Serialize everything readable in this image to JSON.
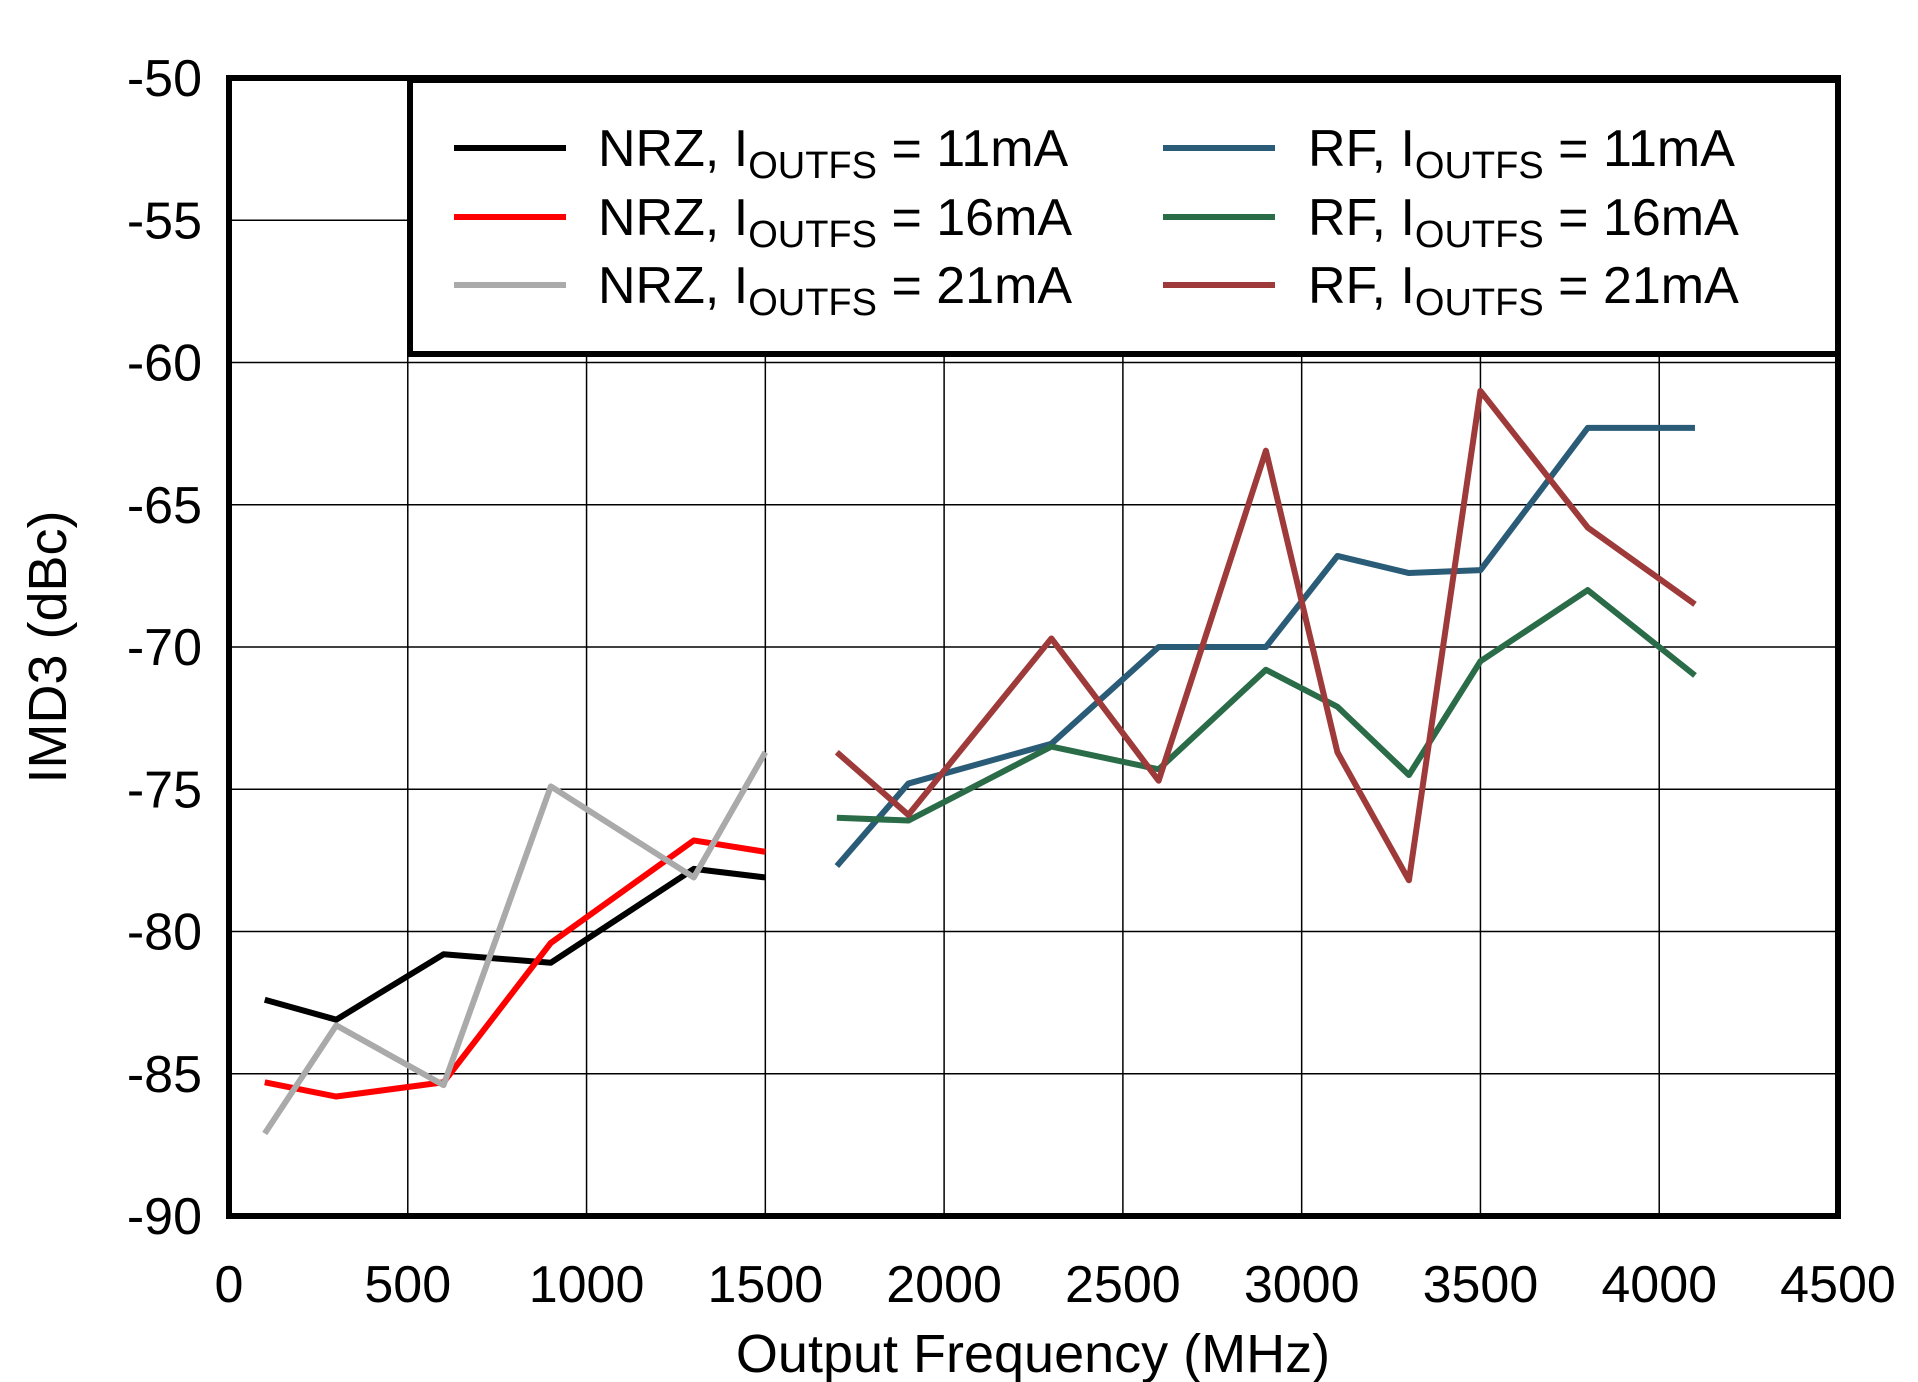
{
  "chart_data": {
    "type": "line",
    "title": "",
    "xlabel": "Output Frequency (MHz)",
    "ylabel": "IMD3 (dBc)",
    "xlim": [
      0,
      4500
    ],
    "ylim": [
      -90,
      -50
    ],
    "xticks": [
      0,
      500,
      1000,
      1500,
      2000,
      2500,
      3000,
      3500,
      4000,
      4500
    ],
    "yticks": [
      -50,
      -55,
      -60,
      -65,
      -70,
      -75,
      -80,
      -85,
      -90
    ],
    "grid": true,
    "legend_position": "top-right",
    "series": [
      {
        "name_parts": [
          "NRZ, I",
          "OUTFS",
          " = 11mA"
        ],
        "color": "#000000",
        "x": [
          100,
          300,
          600,
          900,
          1300,
          1500
        ],
        "y": [
          -82.4,
          -83.1,
          -80.8,
          -81.1,
          -77.8,
          -78.1
        ]
      },
      {
        "name_parts": [
          "NRZ, I",
          "OUTFS",
          " = 16mA"
        ],
        "color": "#FF0000",
        "x": [
          100,
          300,
          600,
          900,
          1300,
          1500
        ],
        "y": [
          -85.3,
          -85.8,
          -85.3,
          -80.4,
          -76.8,
          -77.2
        ]
      },
      {
        "name_parts": [
          "NRZ, I",
          "OUTFS",
          " = 21mA"
        ],
        "color": "#AAAAAA",
        "x": [
          100,
          300,
          600,
          900,
          1300,
          1500
        ],
        "y": [
          -87.1,
          -83.3,
          -85.4,
          -74.9,
          -78.1,
          -73.7
        ]
      },
      {
        "name_parts": [
          "RF, I",
          "OUTFS",
          " = 11mA"
        ],
        "color": "#2A5C78",
        "x": [
          1700,
          1900,
          2300,
          2600,
          2900,
          3100,
          3300,
          3500,
          3800,
          4100
        ],
        "y": [
          -77.7,
          -74.8,
          -73.4,
          -70.0,
          -70.0,
          -66.8,
          -67.4,
          -67.3,
          -62.3,
          -62.3
        ]
      },
      {
        "name_parts": [
          "RF, I",
          "OUTFS",
          " = 16mA"
        ],
        "color": "#2A6B48",
        "x": [
          1700,
          1900,
          2300,
          2600,
          2900,
          3100,
          3300,
          3500,
          3800,
          4100
        ],
        "y": [
          -76.0,
          -76.1,
          -73.5,
          -74.3,
          -70.8,
          -72.1,
          -74.5,
          -70.5,
          -68.0,
          -71.0
        ]
      },
      {
        "name_parts": [
          "RF, I",
          "OUTFS",
          " = 21mA"
        ],
        "color": "#9E3A3A",
        "x": [
          1700,
          1900,
          2300,
          2600,
          2900,
          3100,
          3300,
          3500,
          3800,
          4100
        ],
        "y": [
          -73.7,
          -75.9,
          -69.7,
          -74.7,
          -63.1,
          -73.7,
          -78.2,
          -61.0,
          -65.8,
          -68.5
        ]
      }
    ]
  }
}
